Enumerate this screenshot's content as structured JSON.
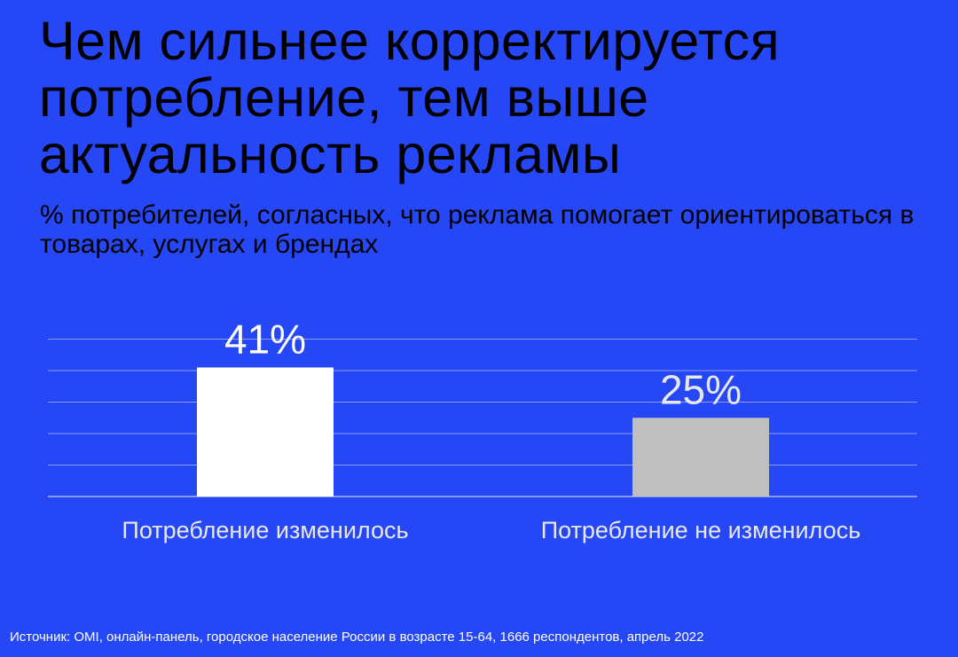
{
  "title": "Чем сильнее корректируется потребление, тем выше актуальность рекламы",
  "subtitle": "% потребителей, согласных, что реклама помогает ориентироваться в товарах, услугах и брендах",
  "source": "Источник: OMI, онлайн-панель, городское население России в возрасте 15-64, 1666 респондентов, апрель 2022",
  "colors": {
    "background": "#2647F5",
    "bar_changed": "#FFFFFF",
    "bar_unchanged": "#BFBFBF",
    "label_light": "#E8E8E8",
    "grid": "#8C9BF7"
  },
  "chart_data": {
    "type": "bar",
    "categories": [
      "Потребление изменилось",
      "Потребление не изменилось"
    ],
    "values": [
      41,
      25
    ],
    "data_labels": [
      "41%",
      "25%"
    ],
    "ylim": [
      0,
      50
    ],
    "grid": true
  }
}
